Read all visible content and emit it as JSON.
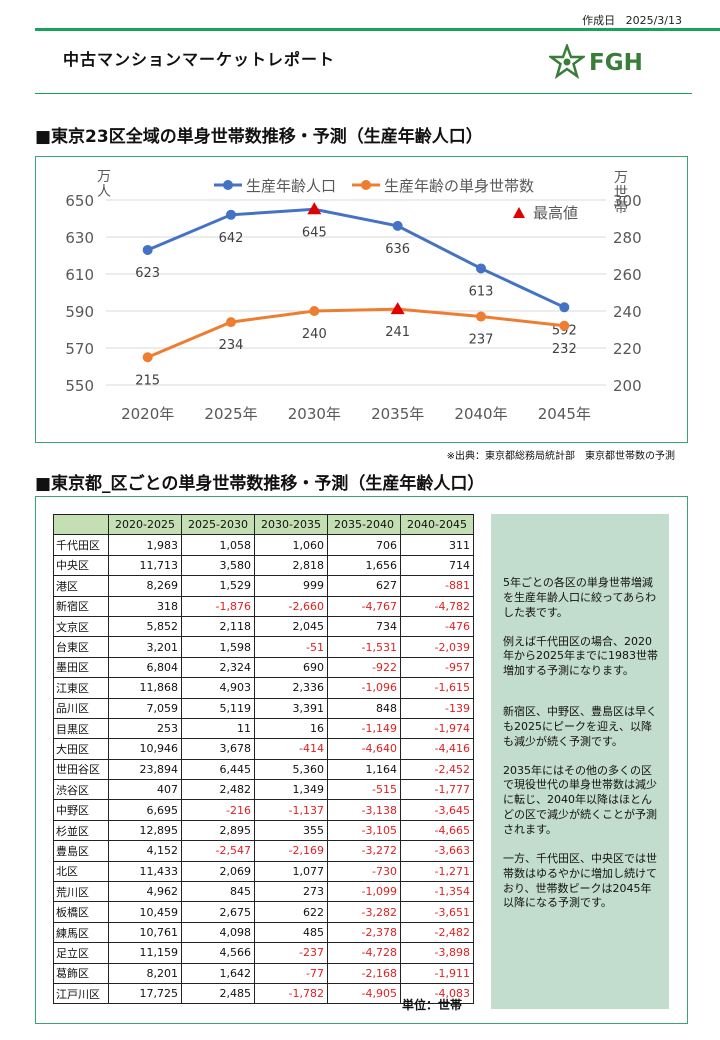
{
  "header": {
    "created_label": "作成日",
    "created_date": "2025/3/13",
    "title": "中古マンションマーケットレポート",
    "logo_text": "FGH"
  },
  "section1": {
    "title": "■東京23区全域の単身世帯数推移・予測（生産年齢人口）"
  },
  "chart_data": {
    "type": "line",
    "categories": [
      "2020年",
      "2025年",
      "2030年",
      "2035年",
      "2040年",
      "2045年"
    ],
    "series": [
      {
        "name": "生産年齢人口",
        "axis": "left",
        "color": "#4472c4",
        "values": [
          623,
          642,
          645,
          636,
          613,
          592
        ],
        "labels": [
          "623",
          "642",
          "645",
          "636",
          "613",
          "592"
        ]
      },
      {
        "name": "生産年齢の単身世帯数",
        "axis": "right",
        "color": "#ed7d31",
        "values": [
          215,
          234,
          240,
          241,
          237,
          232
        ],
        "labels": [
          "215",
          "234",
          "240",
          "241",
          "237",
          "232"
        ]
      }
    ],
    "peak_marker": {
      "name": "最高値",
      "color": "#e00000",
      "points": [
        {
          "series": 0,
          "index": 2
        },
        {
          "series": 1,
          "index": 3
        }
      ]
    },
    "left_axis": {
      "label": "万人",
      "ylim": [
        550,
        650
      ],
      "ticks": [
        "650",
        "630",
        "610",
        "590",
        "570",
        "550"
      ]
    },
    "right_axis": {
      "label": "万世帯",
      "ylim": [
        200,
        300
      ],
      "ticks": [
        "300",
        "280",
        "260",
        "240",
        "220",
        "200"
      ]
    }
  },
  "source_note": "※出典：東京都総務局統計部　東京都世帯数の予測",
  "section2": {
    "title": "■東京都_区ごとの単身世帯数推移・予測（生産年齢人口）",
    "columns": [
      "2020-2025",
      "2025-2030",
      "2030-2035",
      "2035-2040",
      "2040-2045"
    ],
    "rows": [
      {
        "ward": "千代田区",
        "values": [
          "1,983",
          "1,058",
          "1,060",
          "706",
          "311"
        ]
      },
      {
        "ward": "中央区",
        "values": [
          "11,713",
          "3,580",
          "2,818",
          "1,656",
          "714"
        ]
      },
      {
        "ward": "港区",
        "values": [
          "8,269",
          "1,529",
          "999",
          "627",
          "-881"
        ]
      },
      {
        "ward": "新宿区",
        "values": [
          "318",
          "-1,876",
          "-2,660",
          "-4,767",
          "-4,782"
        ]
      },
      {
        "ward": "文京区",
        "values": [
          "5,852",
          "2,118",
          "2,045",
          "734",
          "-476"
        ]
      },
      {
        "ward": "台東区",
        "values": [
          "3,201",
          "1,598",
          "-51",
          "-1,531",
          "-2,039"
        ]
      },
      {
        "ward": "墨田区",
        "values": [
          "6,804",
          "2,324",
          "690",
          "-922",
          "-957"
        ]
      },
      {
        "ward": "江東区",
        "values": [
          "11,868",
          "4,903",
          "2,336",
          "-1,096",
          "-1,615"
        ]
      },
      {
        "ward": "品川区",
        "values": [
          "7,059",
          "5,119",
          "3,391",
          "848",
          "-139"
        ]
      },
      {
        "ward": "目黒区",
        "values": [
          "253",
          "11",
          "16",
          "-1,149",
          "-1,974"
        ]
      },
      {
        "ward": "大田区",
        "values": [
          "10,946",
          "3,678",
          "-414",
          "-4,640",
          "-4,416"
        ]
      },
      {
        "ward": "世田谷区",
        "values": [
          "23,894",
          "6,445",
          "5,360",
          "1,164",
          "-2,452"
        ]
      },
      {
        "ward": "渋谷区",
        "values": [
          "407",
          "2,482",
          "1,349",
          "-515",
          "-1,777"
        ]
      },
      {
        "ward": "中野区",
        "values": [
          "6,695",
          "-216",
          "-1,137",
          "-3,138",
          "-3,645"
        ]
      },
      {
        "ward": "杉並区",
        "values": [
          "12,895",
          "2,895",
          "355",
          "-3,105",
          "-4,665"
        ]
      },
      {
        "ward": "豊島区",
        "values": [
          "4,152",
          "-2,547",
          "-2,169",
          "-3,272",
          "-3,663"
        ]
      },
      {
        "ward": "北区",
        "values": [
          "11,433",
          "2,069",
          "1,077",
          "-730",
          "-1,271"
        ]
      },
      {
        "ward": "荒川区",
        "values": [
          "4,962",
          "845",
          "273",
          "-1,099",
          "-1,354"
        ]
      },
      {
        "ward": "板橋区",
        "values": [
          "10,459",
          "2,675",
          "622",
          "-3,282",
          "-3,651"
        ]
      },
      {
        "ward": "練馬区",
        "values": [
          "10,761",
          "4,098",
          "485",
          "-2,378",
          "-2,482"
        ]
      },
      {
        "ward": "足立区",
        "values": [
          "11,159",
          "4,566",
          "-237",
          "-4,728",
          "-3,898"
        ]
      },
      {
        "ward": "葛飾区",
        "values": [
          "8,201",
          "1,642",
          "-77",
          "-2,168",
          "-1,911"
        ]
      },
      {
        "ward": "江戸川区",
        "values": [
          "17,725",
          "2,485",
          "-1,782",
          "-4,905",
          "-4,083"
        ]
      }
    ],
    "unit": "単位：世帯",
    "notes": [
      "5年ごとの各区の単身世帯増減を生産年齢人口に絞ってあらわした表です。",
      "例えば千代田区の場合、2020年から2025年までに1983世帯増加する予測になります。",
      "新宿区、中野区、豊島区は早くも2025にピークを迎え、以降も減少が続く予測です。",
      "2035年にはその他の多くの区で現役世代の単身世帯数は減少に転じ、2040年以降はほとんどの区で減少が続くことが予測されます。",
      "一方、千代田区、中央区では世帯数はゆるやかに増加し続けており、世帯数ピークは2045年以降になる予測です。"
    ]
  }
}
